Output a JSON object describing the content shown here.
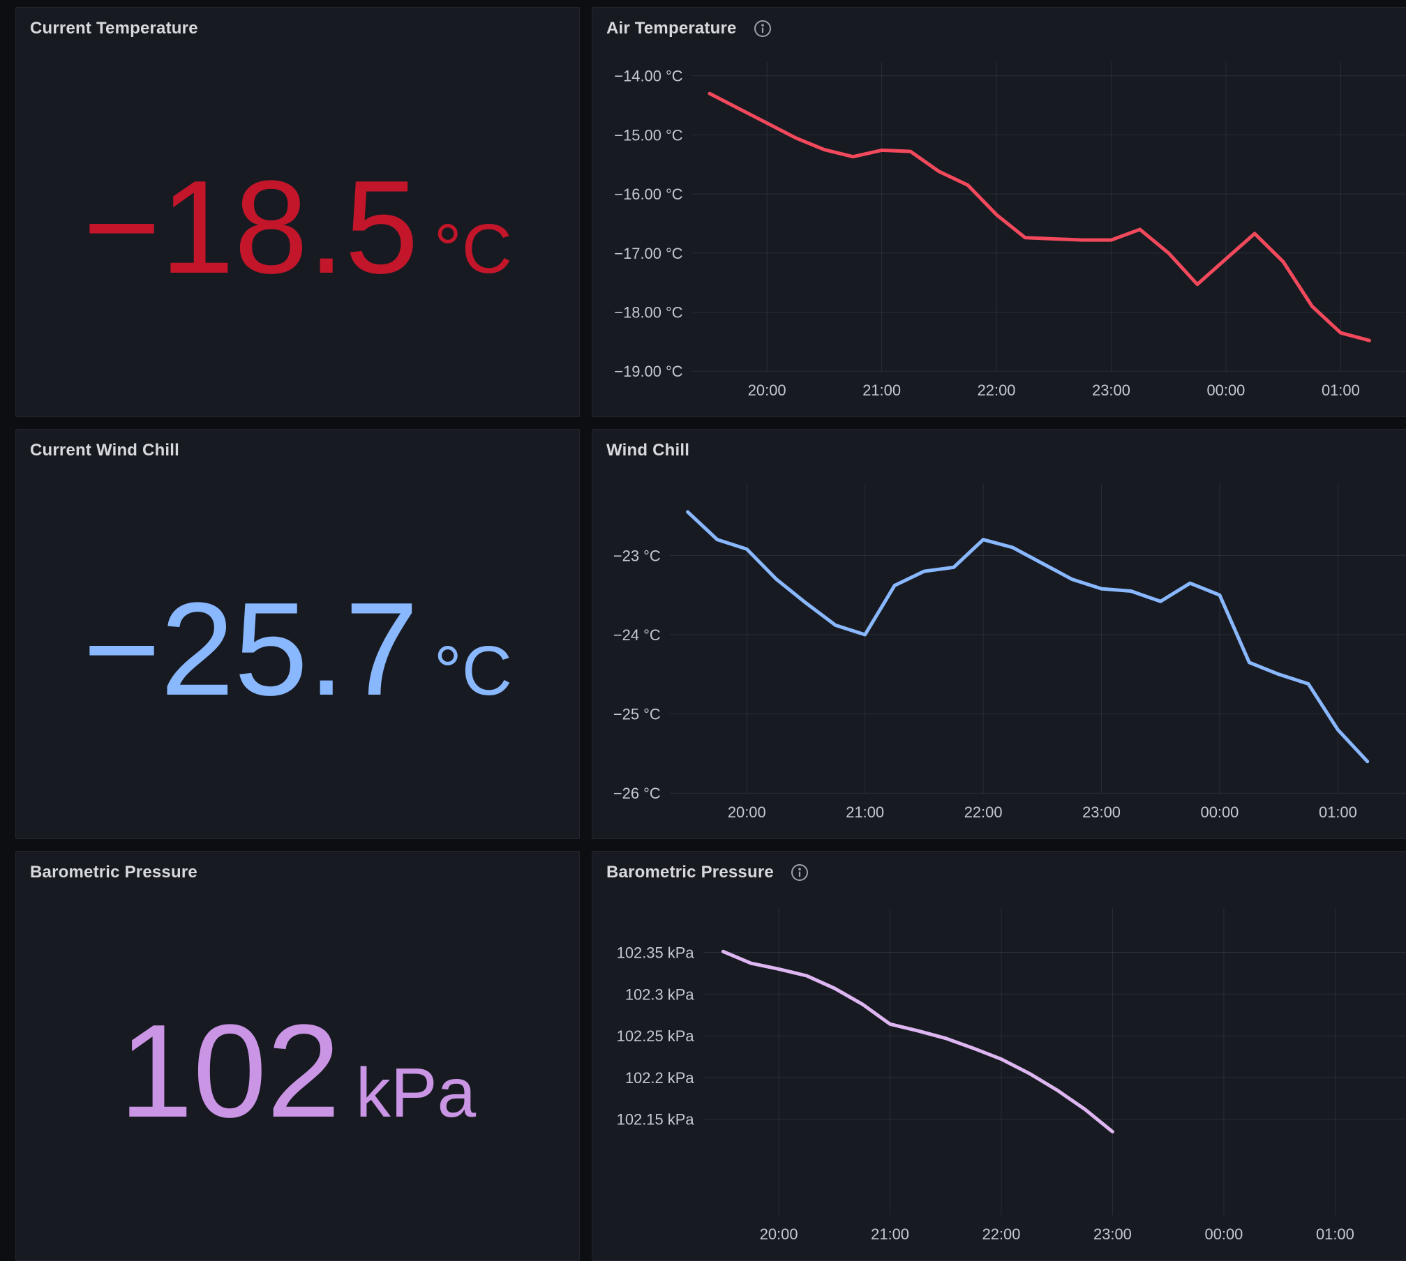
{
  "dashboard": {
    "panels": {
      "current_temperature": {
        "title": "Current Temperature",
        "value": "−18.5",
        "unit": "°C",
        "color": "#C4162A"
      },
      "air_temperature": {
        "title": "Air Temperature",
        "has_info_icon": true
      },
      "current_wind_chill": {
        "title": "Current Wind Chill",
        "value": "−25.7",
        "unit": "°C",
        "color": "#8AB8FF"
      },
      "wind_chill": {
        "title": "Wind Chill",
        "has_info_icon": false
      },
      "barometric_pressure_stat": {
        "title": "Barometric Pressure",
        "value": "102",
        "unit": "kPa",
        "color": "#CA95E5"
      },
      "barometric_pressure_chart": {
        "title": "Barometric Pressure",
        "has_info_icon": true
      }
    }
  },
  "chart_data": [
    {
      "id": "air_temperature",
      "type": "line",
      "title": "Air Temperature",
      "line_color": "#F2495C",
      "x_hours": [
        19.5,
        19.75,
        20,
        20.25,
        20.5,
        20.75,
        21,
        21.25,
        21.5,
        21.75,
        22,
        22.25,
        22.5,
        22.75,
        23,
        23.25,
        23.5,
        23.75,
        24,
        24.25,
        24.5,
        24.75,
        25,
        25.25
      ],
      "values": [
        -14.3,
        -14.55,
        -14.8,
        -15.05,
        -15.25,
        -15.37,
        -15.26,
        -15.28,
        -15.62,
        -15.85,
        -16.35,
        -16.74,
        -16.76,
        -16.78,
        -16.78,
        -16.6,
        -17.0,
        -17.53,
        -17.1,
        -16.67,
        -17.15,
        -17.9,
        -18.35,
        -18.48
      ],
      "y_ticks": {
        "values": [
          -14,
          -15,
          -16,
          -17,
          -18,
          -19
        ],
        "labels": [
          "−14.00 °C",
          "−15.00 °C",
          "−16.00 °C",
          "−17.00 °C",
          "−18.00 °C",
          "−19.00 °C"
        ]
      },
      "x_ticks": {
        "hours": [
          20,
          21,
          22,
          23,
          24,
          25
        ],
        "labels": [
          "20:00",
          "21:00",
          "22:00",
          "23:00",
          "00:00",
          "01:00"
        ]
      },
      "ylim": [
        -19.0,
        -13.74
      ],
      "xlim_hours": [
        19.35,
        25.55
      ],
      "grid": true,
      "legend": "none"
    },
    {
      "id": "wind_chill",
      "type": "line",
      "title": "Wind Chill",
      "line_color": "#8AB8FF",
      "x_hours": [
        19.5,
        19.75,
        20,
        20.25,
        20.5,
        20.75,
        21,
        21.25,
        21.5,
        21.75,
        22,
        22.25,
        22.5,
        22.75,
        23,
        23.25,
        23.5,
        23.75,
        24,
        24.25,
        24.5,
        24.75,
        25,
        25.25
      ],
      "values": [
        -22.45,
        -22.8,
        -22.92,
        -23.3,
        -23.6,
        -23.88,
        -24.0,
        -23.38,
        -23.2,
        -23.15,
        -22.8,
        -22.9,
        -23.1,
        -23.3,
        -23.42,
        -23.45,
        -23.58,
        -23.35,
        -23.5,
        -24.35,
        -24.5,
        -24.62,
        -25.2,
        -25.6
      ],
      "y_ticks": {
        "values": [
          -23,
          -24,
          -25,
          -26
        ],
        "labels": [
          "−23 °C",
          "−24 °C",
          "−25 °C",
          "−26 °C"
        ]
      },
      "x_ticks": {
        "hours": [
          20,
          21,
          22,
          23,
          24,
          25
        ],
        "labels": [
          "20:00",
          "21:00",
          "22:00",
          "23:00",
          "00:00",
          "01:00"
        ]
      },
      "ylim": [
        -26.0,
        -22.08
      ],
      "xlim_hours": [
        19.35,
        25.56
      ],
      "grid": true,
      "legend": "none"
    },
    {
      "id": "barometric_pressure",
      "type": "line",
      "title": "Barometric Pressure",
      "line_color": "#DEB6F2",
      "x_hours": [
        19.5,
        19.75,
        20,
        20.25,
        20.5,
        20.75,
        21,
        21.25,
        21.5,
        21.75,
        22,
        22.25,
        22.5,
        22.75,
        23
      ],
      "values": [
        102.351,
        102.337,
        102.33,
        102.322,
        102.307,
        102.288,
        102.264,
        102.256,
        102.247,
        102.235,
        102.222,
        102.205,
        102.185,
        102.162,
        102.135
      ],
      "y_ticks": {
        "values": [
          102.35,
          102.3,
          102.25,
          102.2,
          102.15
        ],
        "labels": [
          "102.35 kPa",
          "102.3 kPa",
          "102.25 kPa",
          "102.2 kPa",
          "102.15 kPa"
        ]
      },
      "x_ticks": {
        "hours": [
          20,
          21,
          22,
          23,
          24,
          25
        ],
        "labels": [
          "20:00",
          "21:00",
          "22:00",
          "23:00",
          "00:00",
          "01:00"
        ]
      },
      "ylim": [
        102.035,
        102.404
      ],
      "xlim_hours": [
        19.32,
        25.62
      ],
      "grid": true,
      "legend": "none"
    }
  ]
}
